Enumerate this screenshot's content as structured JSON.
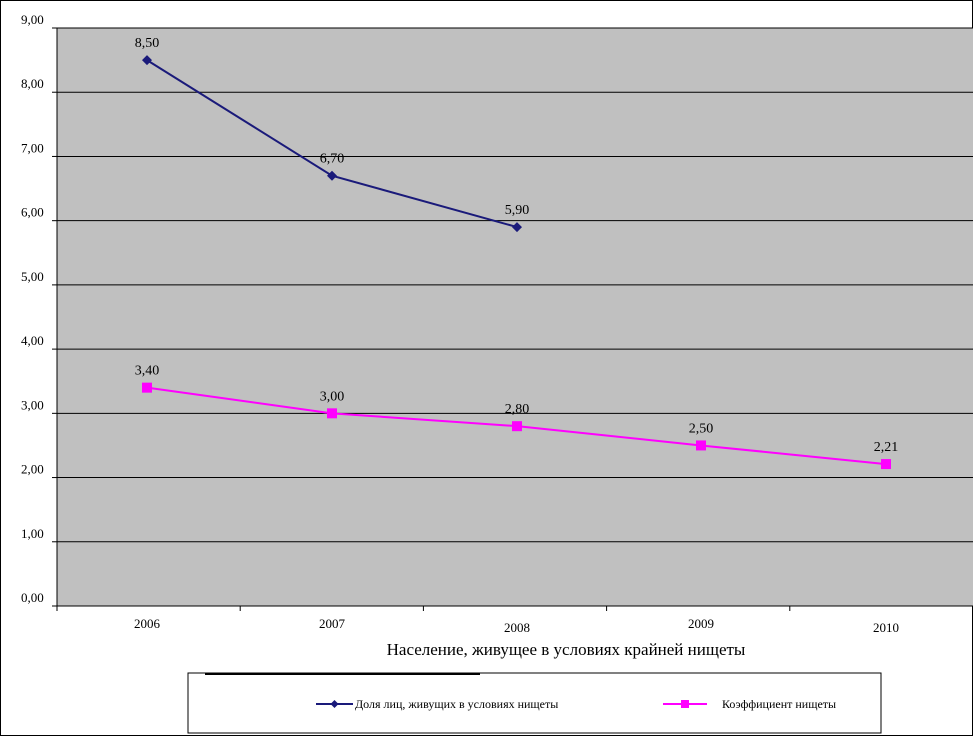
{
  "chart_data": {
    "type": "line",
    "title": "",
    "xlabel": "Население, живущее в условиях крайней нищеты",
    "ylabel": "",
    "categories": [
      "2006",
      "2007",
      "2008",
      "2009",
      "2010"
    ],
    "ylim": [
      0,
      9
    ],
    "yticks": [
      "0,00",
      "1,00",
      "2,00",
      "3,00",
      "4,00",
      "5,00",
      "6,00",
      "7,00",
      "8,00",
      "9,00"
    ],
    "grid": true,
    "plot_background": "#c0c0c0",
    "legend_position": "bottom",
    "series": [
      {
        "name": "Доля лиц, живущих в условиях нищеты",
        "color": "#1a1a7a",
        "marker": "diamond",
        "values": [
          8.5,
          6.7,
          5.9,
          null,
          null
        ],
        "labels": [
          "8,50",
          "6,70",
          "5,90",
          "",
          ""
        ]
      },
      {
        "name": "Коэффициент нищеты",
        "color": "#ff00ff",
        "marker": "square",
        "values": [
          3.4,
          3.0,
          2.8,
          2.5,
          2.21
        ],
        "labels": [
          "3,40",
          "3,00",
          "2,80",
          "2,50",
          "2,21"
        ]
      }
    ]
  }
}
